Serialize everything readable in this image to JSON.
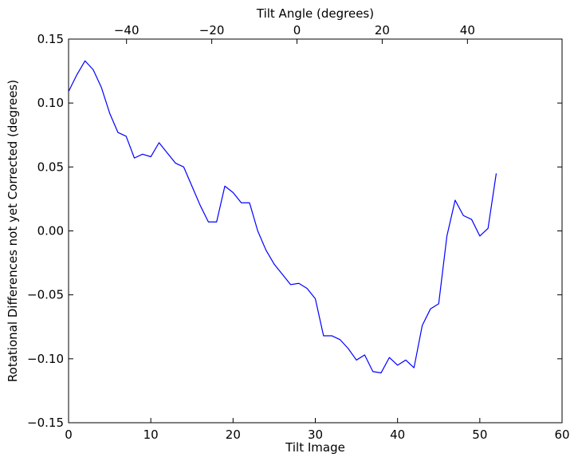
{
  "chart_data": {
    "type": "line",
    "title": "",
    "xlabel": "Tilt Image",
    "ylabel": "Rotational Differences not yet Corrected (degrees)",
    "top_xlabel": "Tilt Angle (degrees)",
    "xlim": [
      0,
      60
    ],
    "ylim": [
      -0.15,
      0.15
    ],
    "top_xlim": [
      -53.6,
      62.2
    ],
    "xticks": [
      0,
      10,
      20,
      30,
      40,
      50,
      60
    ],
    "xtick_labels": [
      "0",
      "10",
      "20",
      "30",
      "40",
      "50",
      "60"
    ],
    "yticks": [
      -0.15,
      -0.1,
      -0.05,
      0.0,
      0.05,
      0.1,
      0.15
    ],
    "ytick_labels": [
      "−0.15",
      "−0.10",
      "−0.05",
      "0.00",
      "0.05",
      "0.10",
      "0.15"
    ],
    "top_xticks": [
      -40,
      -20,
      0,
      20,
      40
    ],
    "top_xtick_labels": [
      "−40",
      "−20",
      "0",
      "20",
      "40"
    ],
    "grid": false,
    "legend": "none",
    "series": [
      {
        "color": "#0000ff",
        "x": [
          0,
          1,
          2,
          3,
          4,
          5,
          6,
          7,
          8,
          9,
          10,
          11,
          12,
          13,
          14,
          15,
          16,
          17,
          18,
          19,
          20,
          21,
          22,
          23,
          24,
          25,
          26,
          27,
          28,
          29,
          30,
          31,
          32,
          33,
          34,
          35,
          36,
          37,
          38,
          39,
          40,
          41,
          42,
          43,
          44,
          45,
          46,
          47,
          48,
          49,
          50,
          51,
          52
        ],
        "y": [
          0.109,
          0.122,
          0.133,
          0.126,
          0.112,
          0.092,
          0.077,
          0.074,
          0.057,
          0.06,
          0.058,
          0.069,
          0.061,
          0.053,
          0.05,
          0.035,
          0.02,
          0.007,
          0.007,
          0.035,
          0.03,
          0.022,
          0.022,
          0.0,
          -0.015,
          -0.026,
          -0.034,
          -0.042,
          -0.041,
          -0.045,
          -0.053,
          -0.082,
          -0.082,
          -0.085,
          -0.092,
          -0.101,
          -0.097,
          -0.11,
          -0.111,
          -0.099,
          -0.105,
          -0.101,
          -0.107,
          -0.074,
          -0.061,
          -0.057,
          -0.004,
          0.024,
          0.012,
          0.009,
          -0.004,
          0.002,
          0.045
        ]
      }
    ]
  }
}
